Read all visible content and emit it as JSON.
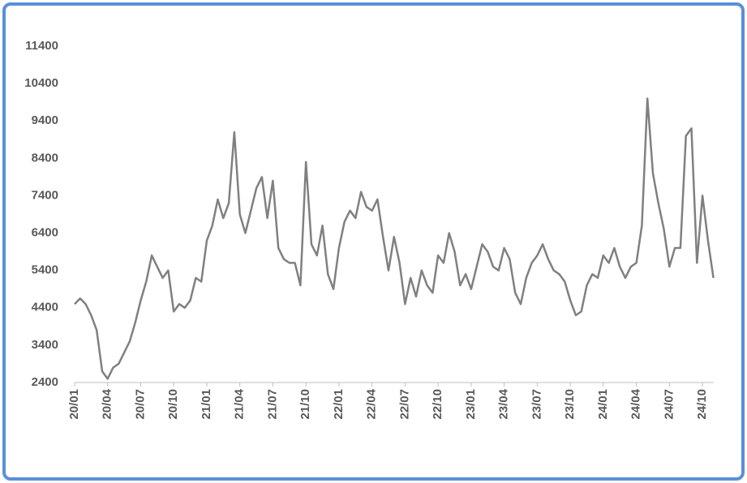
{
  "chart_data": {
    "type": "line",
    "categories": [
      "20/01",
      null,
      null,
      null,
      null,
      null,
      "20/04",
      null,
      null,
      null,
      null,
      null,
      "20/07",
      null,
      null,
      null,
      null,
      null,
      "20/10",
      null,
      null,
      null,
      null,
      null,
      "21/01",
      null,
      null,
      null,
      null,
      null,
      "21/04",
      null,
      null,
      null,
      null,
      null,
      "21/07",
      null,
      null,
      null,
      null,
      null,
      "21/10",
      null,
      null,
      null,
      null,
      null,
      "22/01",
      null,
      null,
      null,
      null,
      null,
      "22/04",
      null,
      null,
      null,
      null,
      null,
      "22/07",
      null,
      null,
      null,
      null,
      null,
      "22/10",
      null,
      null,
      null,
      null,
      null,
      "23/01",
      null,
      null,
      null,
      null,
      null,
      "23/04",
      null,
      null,
      null,
      null,
      null,
      "23/07",
      null,
      null,
      null,
      null,
      null,
      "23/10",
      null,
      null,
      null,
      null,
      null,
      "24/01",
      null,
      null,
      null,
      null,
      null,
      "24/04",
      null,
      null,
      null,
      null,
      null,
      "24/07",
      null,
      null,
      null,
      null,
      null,
      "24/10",
      null,
      null
    ],
    "values": [
      4500,
      4650,
      4500,
      4200,
      3800,
      2700,
      2500,
      2800,
      2900,
      3200,
      3500,
      4000,
      4600,
      5100,
      5800,
      5500,
      5200,
      5400,
      4300,
      4500,
      4400,
      4600,
      5200,
      5100,
      6200,
      6600,
      7300,
      6800,
      7200,
      9100,
      6900,
      6400,
      7000,
      7600,
      7900,
      6800,
      7800,
      6000,
      5700,
      5600,
      5600,
      5000,
      8300,
      6100,
      5800,
      6600,
      5300,
      4900,
      6000,
      6700,
      7000,
      6800,
      7500,
      7100,
      7000,
      7300,
      6300,
      5400,
      6300,
      5600,
      4500,
      5200,
      4700,
      5400,
      5000,
      4800,
      5800,
      5600,
      6400,
      5900,
      5000,
      5300,
      4900,
      5500,
      6100,
      5900,
      5500,
      5400,
      6000,
      5700,
      4800,
      4500,
      5200,
      5600,
      5800,
      6100,
      5700,
      5400,
      5300,
      5100,
      4600,
      4200,
      4300,
      5000,
      5300,
      5200,
      5800,
      5600,
      6000,
      5500,
      5200,
      5500,
      5600,
      6600,
      10000,
      8000,
      7200,
      6500,
      5500,
      6000,
      6000,
      9000,
      9200,
      5600,
      7400,
      6200,
      5200
    ],
    "color": "#808080",
    "ylim": [
      2400,
      11400
    ],
    "yticks": [
      2400,
      3400,
      4400,
      5400,
      6400,
      7400,
      8400,
      9400,
      10400,
      11400
    ],
    "grid": false
  }
}
